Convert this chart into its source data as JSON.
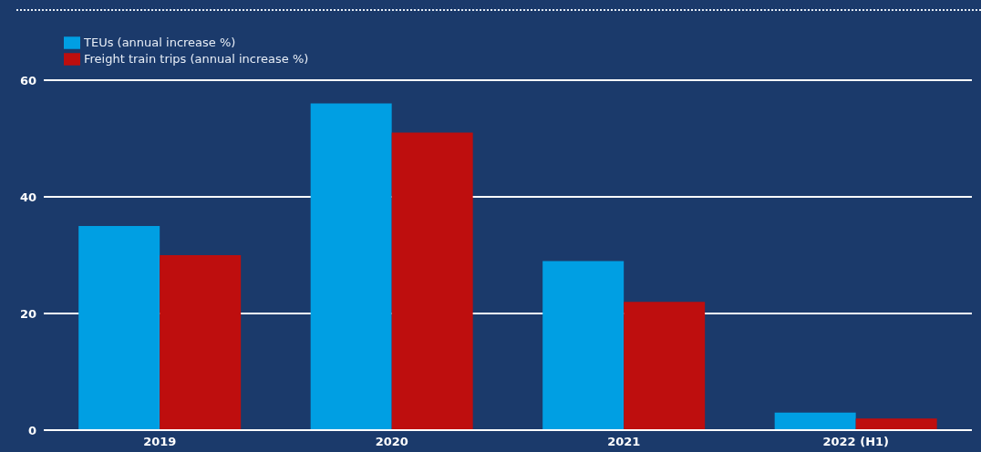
{
  "chart_data": {
    "type": "bar",
    "categories": [
      "2019",
      "2020",
      "2021",
      "2022 (H1)"
    ],
    "series": [
      {
        "name": "TEUs (annual increase %)",
        "color": "#009fe3",
        "values": [
          35,
          56,
          29,
          3
        ]
      },
      {
        "name": "Freight train trips (annual increase %)",
        "color": "#be0e0e",
        "values": [
          30,
          51,
          22,
          2
        ]
      }
    ],
    "ylim": [
      0,
      60
    ],
    "yticks": [
      0,
      20,
      40,
      60
    ],
    "grid": "y",
    "legend": "top left"
  }
}
